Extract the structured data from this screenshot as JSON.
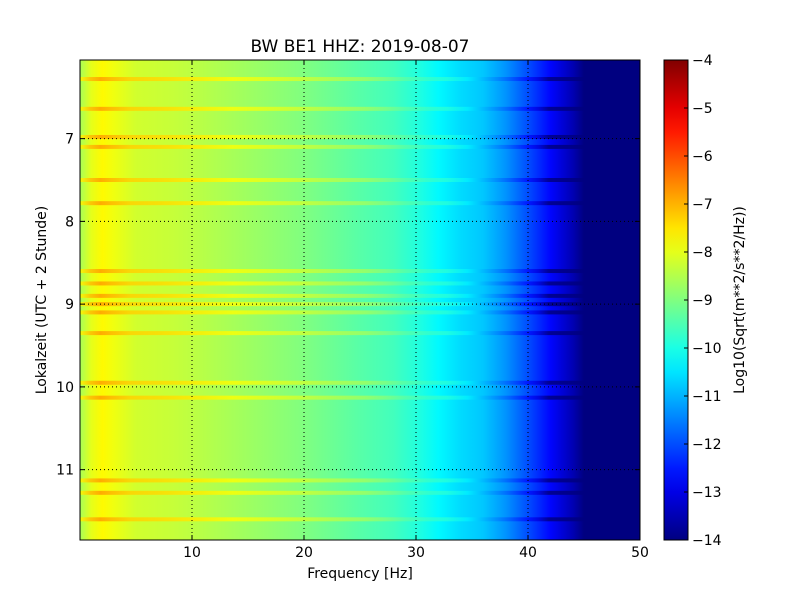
{
  "chart_data": {
    "type": "heatmap",
    "title": "BW BE1 HHZ: 2019-08-07",
    "xlabel": "Frequency [Hz]",
    "ylabel": "Lokalzeit (UTC + 2 Stunde)",
    "colorbar_label": "Log10(Sqrt(m**2/s**2/Hz))",
    "xlim": [
      0,
      50
    ],
    "ylim": [
      6.05,
      11.85
    ],
    "y_inverted": true,
    "x_ticks": [
      10,
      20,
      30,
      40,
      50
    ],
    "y_ticks": [
      7,
      8,
      9,
      10,
      11
    ],
    "color_range": [
      -14,
      -4
    ],
    "color_ticks": [
      -14,
      -13,
      -12,
      -11,
      -10,
      -9,
      -8,
      -7,
      -6,
      -5,
      -4
    ],
    "colormap": "jet",
    "grid": true,
    "frequency_profile": {
      "frequency_hz": [
        0,
        1,
        2,
        3,
        5,
        8,
        10,
        15,
        20,
        25,
        28,
        30,
        32,
        34,
        36,
        38,
        40,
        42,
        44,
        45,
        46,
        50
      ],
      "log_amplitude": [
        -8.6,
        -8.0,
        -7.7,
        -7.9,
        -8.2,
        -8.3,
        -8.4,
        -8.7,
        -9.0,
        -9.4,
        -9.6,
        -9.9,
        -10.3,
        -10.6,
        -10.8,
        -11.3,
        -12.0,
        -12.7,
        -13.5,
        -14.0,
        -14.0,
        -14.0
      ]
    },
    "bright_bands_hour": [
      6.28,
      6.64,
      6.98,
      7.1,
      7.5,
      7.78,
      8.6,
      8.75,
      8.9,
      9.0,
      9.1,
      9.35,
      9.95,
      10.13,
      11.13,
      11.28,
      11.6
    ]
  }
}
